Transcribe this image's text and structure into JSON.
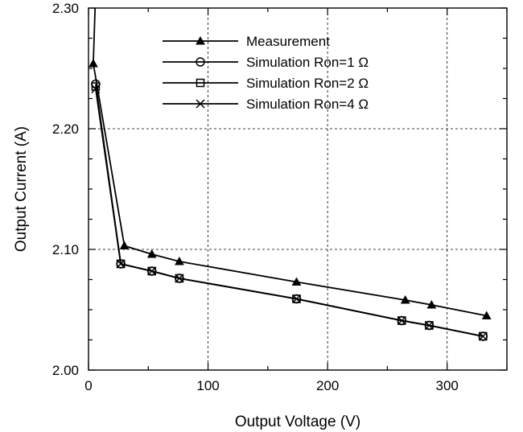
{
  "chart_data": {
    "type": "line",
    "xlabel": "Output Voltage (V)",
    "ylabel": "Output Current (A)",
    "xlim": [
      0,
      350
    ],
    "ylim": [
      2.0,
      2.3
    ],
    "x_ticks": [
      "0",
      "100",
      "200",
      "300"
    ],
    "x_tick_values": [
      0,
      100,
      200,
      300
    ],
    "y_ticks": [
      "2.00",
      "2.10",
      "2.20",
      "2.30"
    ],
    "y_tick_values": [
      2.0,
      2.1,
      2.2,
      2.3
    ],
    "grid": "dashed at major ticks",
    "legend_position": "top-right",
    "series": [
      {
        "name": "Measurement",
        "marker": "filled-triangle",
        "x": [
          4,
          30,
          53,
          76,
          174,
          265,
          287,
          333
        ],
        "y": [
          2.254,
          2.103,
          2.096,
          2.09,
          2.073,
          2.058,
          2.054,
          2.045
        ],
        "pre_x": [
          5.5
        ],
        "pre_y": [
          2.3
        ]
      },
      {
        "name": "Simulation Ron=1 Ω",
        "marker": "open-circle",
        "x": [
          6,
          27,
          53,
          76,
          174,
          262,
          285,
          330
        ],
        "y": [
          2.237,
          2.088,
          2.082,
          2.076,
          2.059,
          2.041,
          2.037,
          2.028
        ]
      },
      {
        "name": "Simulation Ron=2 Ω",
        "marker": "open-square",
        "x": [
          6,
          27,
          53,
          76,
          174,
          262,
          285,
          330
        ],
        "y": [
          2.235,
          2.088,
          2.082,
          2.076,
          2.059,
          2.041,
          2.037,
          2.028
        ]
      },
      {
        "name": "Simulation Ron=4 Ω",
        "marker": "x-cross",
        "x": [
          6,
          27,
          53,
          76,
          174,
          262,
          285,
          330
        ],
        "y": [
          2.233,
          2.088,
          2.082,
          2.076,
          2.059,
          2.041,
          2.037,
          2.028
        ]
      }
    ]
  }
}
